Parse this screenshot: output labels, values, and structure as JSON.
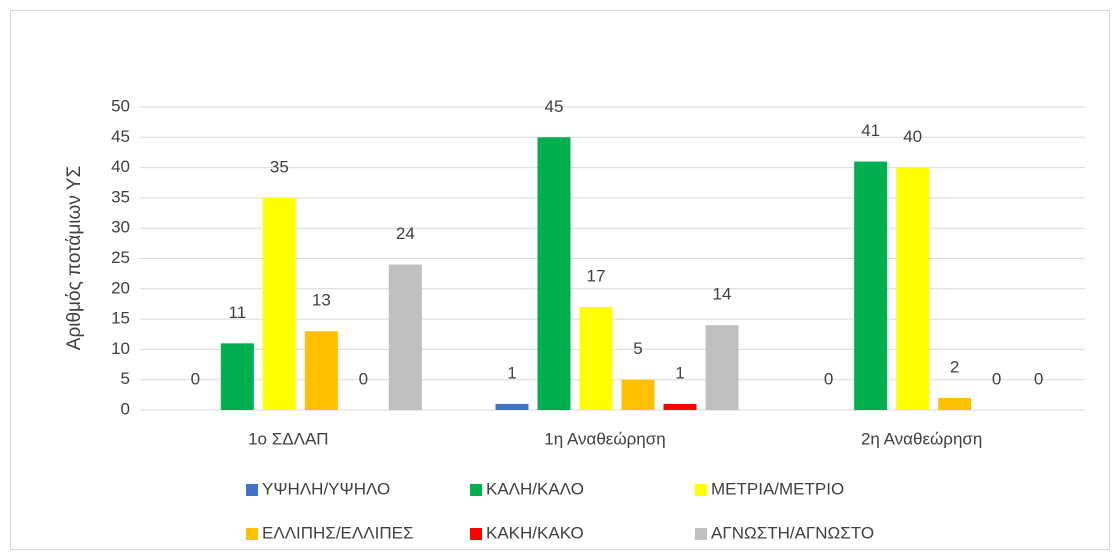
{
  "chart_data": {
    "type": "bar",
    "y_label": "Αριθμός ποτάμιων ΥΣ",
    "categories": [
      "1ο ΣΔΛΑΠ",
      "1η Αναθεώρηση",
      "2η Αναθεώρηση"
    ],
    "series": [
      {
        "name": "ΥΨΗΛΗ/ΥΨΗΛΟ",
        "color": "#4472c4",
        "values": [
          0,
          1,
          0
        ]
      },
      {
        "name": "ΚΑΛΗ/ΚΑΛΟ",
        "color": "#00b050",
        "values": [
          11,
          45,
          41
        ]
      },
      {
        "name": "ΜΕΤΡΙΑ/ΜΕΤΡΙΟ",
        "color": "#ffff00",
        "values": [
          35,
          17,
          40
        ]
      },
      {
        "name": "ΕΛΛΙΠΗΣ/ΕΛΛΙΠΕΣ",
        "color": "#ffc000",
        "values": [
          13,
          5,
          2
        ]
      },
      {
        "name": "ΚΑΚΗ/ΚΑΚΟ",
        "color": "#ff0000",
        "values": [
          0,
          1,
          0
        ]
      },
      {
        "name": "ΑΓΝΩΣΤΗ/ΑΓΝΩΣΤΟ",
        "color": "#bfbfbf",
        "values": [
          24,
          14,
          0
        ]
      }
    ],
    "ylim": [
      0,
      50
    ],
    "yticks": [
      0,
      5,
      10,
      15,
      20,
      25,
      30,
      35,
      40,
      45,
      50
    ],
    "grid": true,
    "legend": "bottom"
  }
}
